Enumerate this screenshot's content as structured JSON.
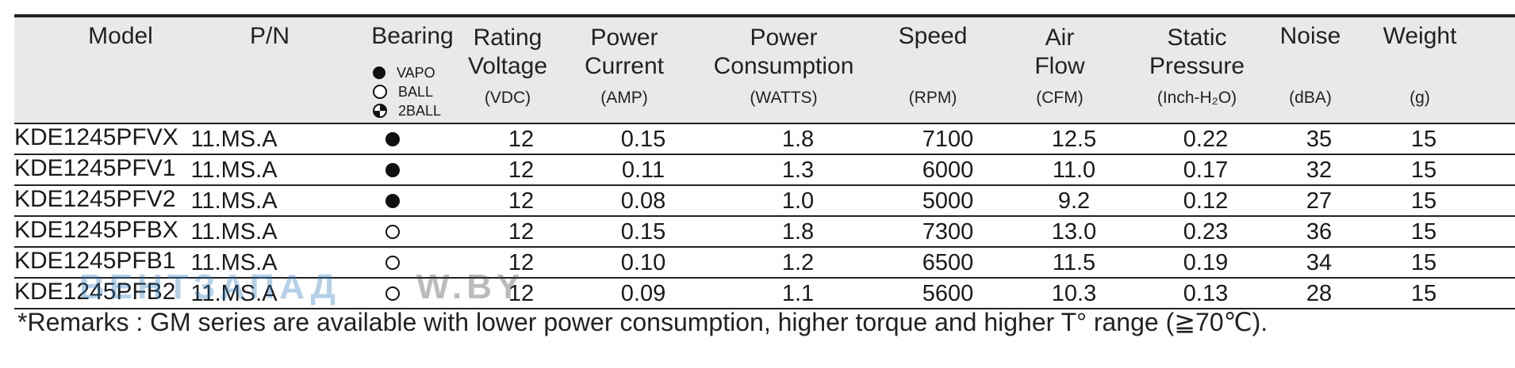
{
  "table": {
    "columns": [
      {
        "name": "Model",
        "unit": ""
      },
      {
        "name": "P/N",
        "unit": ""
      },
      {
        "name": "Bearing",
        "unit": ""
      },
      {
        "name": "Rating\nVoltage",
        "unit": "(VDC)"
      },
      {
        "name": "Power\nCurrent",
        "unit": "(AMP)"
      },
      {
        "name": "Power\nConsumption",
        "unit": "(WATTS)"
      },
      {
        "name": "Speed",
        "unit": "(RPM)"
      },
      {
        "name": "Air\nFlow",
        "unit": "(CFM)"
      },
      {
        "name": "Static\nPressure",
        "unit": "(Inch-H₂O)"
      },
      {
        "name": "Noise",
        "unit": "(dBA)"
      },
      {
        "name": "Weight",
        "unit": "(g)"
      }
    ],
    "bearing_legend": [
      {
        "symbol": "filled",
        "label": "VAPO"
      },
      {
        "symbol": "open",
        "label": "BALL"
      },
      {
        "symbol": "half",
        "label": "2BALL"
      }
    ],
    "rows": [
      {
        "model": "KDE1245PFVX",
        "pn": "11.MS.A",
        "bearing": "filled",
        "voltage": "12",
        "current": "0.15",
        "power": "1.8",
        "speed": "7100",
        "airflow": "12.5",
        "pressure": "0.22",
        "noise": "35",
        "weight": "15"
      },
      {
        "model": "KDE1245PFV1",
        "pn": "11.MS.A",
        "bearing": "filled",
        "voltage": "12",
        "current": "0.11",
        "power": "1.3",
        "speed": "6000",
        "airflow": "11.0",
        "pressure": "0.17",
        "noise": "32",
        "weight": "15"
      },
      {
        "model": "KDE1245PFV2",
        "pn": "11.MS.A",
        "bearing": "filled",
        "voltage": "12",
        "current": "0.08",
        "power": "1.0",
        "speed": "5000",
        "airflow": "9.2",
        "pressure": "0.12",
        "noise": "27",
        "weight": "15"
      },
      {
        "model": "KDE1245PFBX",
        "pn": "11.MS.A",
        "bearing": "open",
        "voltage": "12",
        "current": "0.15",
        "power": "1.8",
        "speed": "7300",
        "airflow": "13.0",
        "pressure": "0.23",
        "noise": "36",
        "weight": "15"
      },
      {
        "model": "KDE1245PFB1",
        "pn": "11.MS.A",
        "bearing": "open",
        "voltage": "12",
        "current": "0.10",
        "power": "1.2",
        "speed": "6500",
        "airflow": "11.5",
        "pressure": "0.19",
        "noise": "34",
        "weight": "15"
      },
      {
        "model": "KDE1245PFB2",
        "pn": "11.MS.A",
        "bearing": "open",
        "voltage": "12",
        "current": "0.09",
        "power": "1.1",
        "speed": "5600",
        "airflow": "10.3",
        "pressure": "0.13",
        "noise": "28",
        "weight": "15"
      }
    ]
  },
  "watermark": {
    "left": "ВЕНТЗАПАД",
    "right": "W.BY"
  },
  "remarks": "*Remarks : GM series are available with lower power consumption, higher torque and higher T° range (≧70℃)."
}
